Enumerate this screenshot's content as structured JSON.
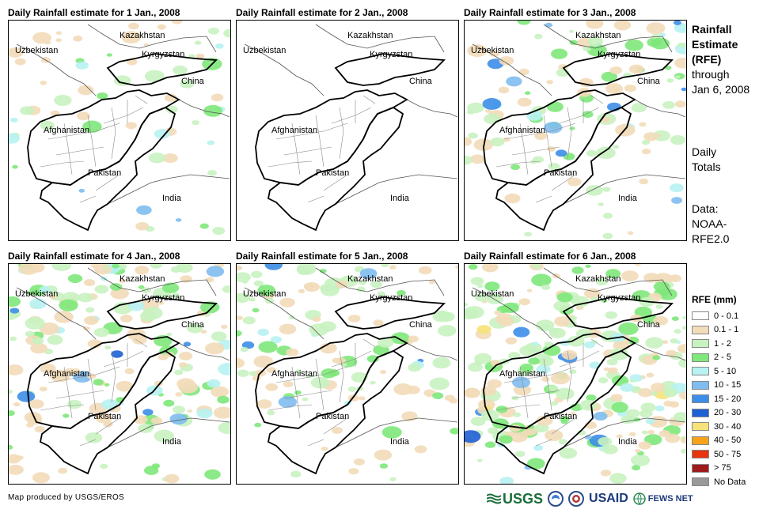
{
  "panels": [
    {
      "title": "Daily Rainfall estimate for 1 Jan., 2008",
      "rain_level": 1
    },
    {
      "title": "Daily Rainfall estimate for 2 Jan., 2008",
      "rain_level": 0
    },
    {
      "title": "Daily Rainfall estimate for 3 Jan., 2008",
      "rain_level": 2
    },
    {
      "title": "Daily Rainfall estimate for 4 Jan., 2008",
      "rain_level": 3
    },
    {
      "title": "Daily Rainfall estimate for 5 Jan., 2008",
      "rain_level": 2
    },
    {
      "title": "Daily Rainfall estimate for 6 Jan., 2008",
      "rain_level": 4
    }
  ],
  "map_labels": {
    "kazakhstan": "Kazakhstan",
    "uzbekistan": "Uzbekistan",
    "kyrgyzstan": "Kyrgyzstan",
    "china": "China",
    "afghanistan": "Afghanistan",
    "pakistan": "Pakistan",
    "india": "India"
  },
  "side": {
    "title_lines": [
      "Rainfall",
      "Estimate",
      "(RFE)"
    ],
    "through_lines": [
      "through",
      "Jan 6, 2008"
    ],
    "totals_lines": [
      "Daily",
      "Totals"
    ],
    "data_lines": [
      "Data:",
      "NOAA-",
      "RFE2.0"
    ]
  },
  "legend": {
    "title": "RFE (mm)",
    "items": [
      {
        "label": "0 - 0.1",
        "color": "#ffffff"
      },
      {
        "label": "0.1 - 1",
        "color": "#f2dcb9"
      },
      {
        "label": "1 - 2",
        "color": "#c8f2c0"
      },
      {
        "label": "2 - 5",
        "color": "#7ee87a"
      },
      {
        "label": "5 - 10",
        "color": "#b8f2f2"
      },
      {
        "label": "10 - 15",
        "color": "#7fbcf0"
      },
      {
        "label": "15 - 20",
        "color": "#3d8ee8"
      },
      {
        "label": "20 - 30",
        "color": "#1f5fd4"
      },
      {
        "label": "30 - 40",
        "color": "#f7e27a"
      },
      {
        "label": "40 - 50",
        "color": "#f5a31a"
      },
      {
        "label": "50 - 75",
        "color": "#e8340f"
      },
      {
        "label": "> 75",
        "color": "#9e1b1b"
      },
      {
        "label": "No Data",
        "color": "#999999"
      }
    ]
  },
  "footer": "Map produced by USGS/EROS",
  "logos": {
    "usgs": "USGS",
    "usaid": "USAID",
    "fews": "FEWS NET"
  }
}
